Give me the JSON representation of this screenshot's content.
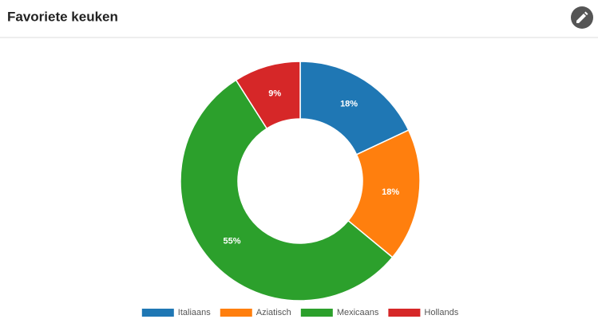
{
  "chart_data": {
    "type": "donut",
    "title": "Favoriete keuken",
    "categories": [
      "Italiaans",
      "Aziatisch",
      "Mexicaans",
      "Hollands"
    ],
    "values": [
      18,
      18,
      55,
      9
    ],
    "value_labels": [
      "18%",
      "18%",
      "55%",
      "9%"
    ],
    "colors": [
      "#1f77b4",
      "#ff7f0e",
      "#2ca02c",
      "#d62728"
    ],
    "legend": "bottom"
  }
}
